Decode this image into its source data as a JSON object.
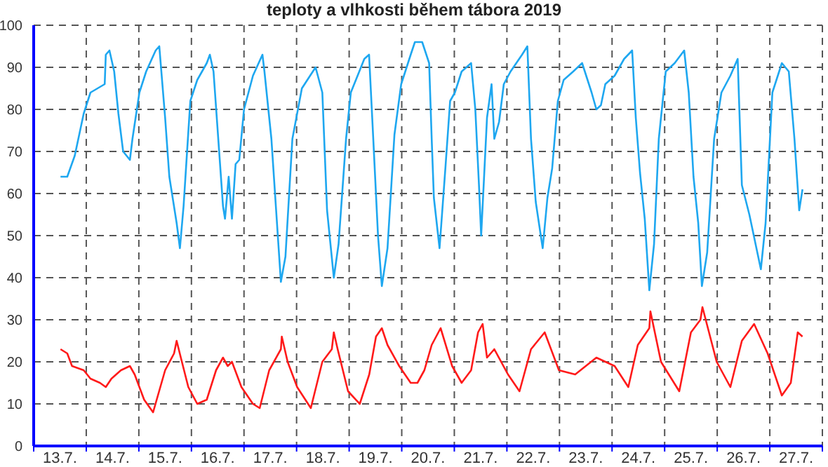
{
  "chart_data": {
    "type": "line",
    "title": "teploty a vlhkosti během tábora 2019",
    "xlim": [
      "2019-07-13",
      "2019-07-28"
    ],
    "xticks": [
      {
        "value": "2019-07-13",
        "label": null
      },
      {
        "value": "2019-07-13T12:00",
        "label": "13.7."
      },
      {
        "value": "2019-07-14",
        "label": null
      },
      {
        "value": "2019-07-14T12:00",
        "label": "14.7."
      },
      {
        "value": "2019-07-15",
        "label": null
      },
      {
        "value": "2019-07-15T12:00",
        "label": "15.7."
      },
      {
        "value": "2019-07-16",
        "label": null
      },
      {
        "value": "2019-07-16T12:00",
        "label": "16.7."
      },
      {
        "value": "2019-07-17",
        "label": null
      },
      {
        "value": "2019-07-17T12:00",
        "label": "17.7."
      },
      {
        "value": "2019-07-18",
        "label": null
      },
      {
        "value": "2019-07-18T12:00",
        "label": "18.7."
      },
      {
        "value": "2019-07-19",
        "label": null
      },
      {
        "value": "2019-07-19T12:00",
        "label": "19.7."
      },
      {
        "value": "2019-07-20",
        "label": null
      },
      {
        "value": "2019-07-20T12:00",
        "label": "20.7."
      },
      {
        "value": "2019-07-21",
        "label": null
      },
      {
        "value": "2019-07-21T12:00",
        "label": "21.7."
      },
      {
        "value": "2019-07-22",
        "label": null
      },
      {
        "value": "2019-07-22T12:00",
        "label": "22.7."
      },
      {
        "value": "2019-07-23",
        "label": null
      },
      {
        "value": "2019-07-23T12:00",
        "label": "23.7."
      },
      {
        "value": "2019-07-24",
        "label": null
      },
      {
        "value": "2019-07-24T12:00",
        "label": "24.7."
      },
      {
        "value": "2019-07-25",
        "label": null
      },
      {
        "value": "2019-07-25T12:00",
        "label": "25.7."
      },
      {
        "value": "2019-07-26",
        "label": null
      },
      {
        "value": "2019-07-26T12:00",
        "label": "26.7."
      },
      {
        "value": "2019-07-27",
        "label": null
      },
      {
        "value": "2019-07-27T12:00",
        "label": "27.7."
      },
      {
        "value": "2019-07-28",
        "label": null
      }
    ],
    "ylim": [
      0,
      100
    ],
    "yticks": [
      0,
      10,
      20,
      30,
      40,
      50,
      60,
      70,
      80,
      90,
      100
    ],
    "grid": true,
    "line_style": "solid",
    "marker": "none",
    "series": [
      {
        "color": "#1ea7f0",
        "x": [
          "2019-07-13T12:15",
          "2019-07-13T15:20",
          "2019-07-13T18:45",
          "2019-07-13T22:50",
          "2019-07-14T01:55",
          "2019-07-14T08:25",
          "2019-07-14T08:55",
          "2019-07-14T10:35",
          "2019-07-14T12:45",
          "2019-07-14T14:40",
          "2019-07-14T16:50",
          "2019-07-14T19:55",
          "2019-07-14T21:05",
          "2019-07-15T00:15",
          "2019-07-15T03:20",
          "2019-07-15T07:40",
          "2019-07-15T09:20",
          "2019-07-15T12:00",
          "2019-07-15T13:55",
          "2019-07-15T17:15",
          "2019-07-15T18:45",
          "2019-07-15T20:25",
          "2019-07-15T23:30",
          "2019-07-16T02:40",
          "2019-07-16T07:00",
          "2019-07-16T08:25",
          "2019-07-16T10:05",
          "2019-07-16T12:15",
          "2019-07-16T14:25",
          "2019-07-16T15:20",
          "2019-07-16T17:00",
          "2019-07-16T18:30",
          "2019-07-16T20:10",
          "2019-07-16T21:50",
          "2019-07-17T00:00",
          "2019-07-17T04:05",
          "2019-07-17T08:25",
          "2019-07-17T09:20",
          "2019-07-17T12:30",
          "2019-07-17T14:40",
          "2019-07-17T16:50",
          "2019-07-17T18:55",
          "2019-07-17T22:05",
          "2019-07-18T02:25",
          "2019-07-18T08:40",
          "2019-07-18T11:45",
          "2019-07-18T13:55",
          "2019-07-18T17:00",
          "2019-07-18T19:10",
          "2019-07-18T22:35",
          "2019-07-19T00:45",
          "2019-07-19T06:55",
          "2019-07-19T09:05",
          "2019-07-19T11:00",
          "2019-07-19T13:10",
          "2019-07-19T14:55",
          "2019-07-19T17:30",
          "2019-07-19T20:40",
          "2019-07-19T23:45",
          "2019-07-20T04:05",
          "2019-07-20T06:00",
          "2019-07-20T09:20",
          "2019-07-20T12:30",
          "2019-07-20T13:40",
          "2019-07-20T14:40",
          "2019-07-20T17:15",
          "2019-07-20T19:55",
          "2019-07-20T22:05",
          "2019-07-21T00:15",
          "2019-07-21T03:20",
          "2019-07-21T07:40",
          "2019-07-21T09:35",
          "2019-07-21T11:15",
          "2019-07-21T12:15",
          "2019-07-21T14:55",
          "2019-07-21T17:00",
          "2019-07-21T18:15",
          "2019-07-21T20:25",
          "2019-07-21T22:35",
          "2019-07-22T01:40",
          "2019-07-22T06:55",
          "2019-07-22T09:20",
          "2019-07-22T11:00",
          "2019-07-22T13:10",
          "2019-07-22T16:20",
          "2019-07-22T18:30",
          "2019-07-22T20:40",
          "2019-07-22T23:15",
          "2019-07-23T01:55",
          "2019-07-23T06:15",
          "2019-07-23T10:20",
          "2019-07-23T14:40",
          "2019-07-23T16:50",
          "2019-07-23T18:55",
          "2019-07-23T20:55",
          "2019-07-24T01:10",
          "2019-07-24T05:30",
          "2019-07-24T09:10",
          "2019-07-24T10:50",
          "2019-07-24T12:45",
          "2019-07-24T14:55",
          "2019-07-24T17:00",
          "2019-07-24T19:10",
          "2019-07-24T21:20",
          "2019-07-25T00:30",
          "2019-07-25T04:35",
          "2019-07-25T08:55",
          "2019-07-25T11:00",
          "2019-07-25T13:10",
          "2019-07-25T15:20",
          "2019-07-25T17:00",
          "2019-07-25T19:25",
          "2019-07-25T22:35",
          "2019-07-26T01:55",
          "2019-07-26T06:00",
          "2019-07-26T09:20",
          "2019-07-26T11:15",
          "2019-07-26T14:40",
          "2019-07-26T19:55",
          "2019-07-26T22:05",
          "2019-07-27T01:10",
          "2019-07-27T05:30",
          "2019-07-27T08:40",
          "2019-07-27T11:15",
          "2019-07-27T13:25",
          "2019-07-27T14:55"
        ],
        "values": [
          64,
          64,
          69,
          79,
          84,
          86,
          93,
          94,
          89,
          79,
          70,
          68,
          73,
          84,
          89,
          94,
          95,
          78,
          64,
          53,
          47,
          57,
          82,
          87,
          91,
          93,
          89,
          73,
          57,
          54,
          64,
          54,
          67,
          68,
          80,
          88,
          93,
          89,
          73,
          56,
          39,
          45,
          73,
          85,
          90,
          84,
          56,
          40,
          48,
          73,
          84,
          92,
          93,
          73,
          50,
          38,
          47,
          74,
          86,
          93,
          96,
          96,
          91,
          73,
          59,
          47,
          66,
          82,
          84,
          89,
          91,
          80,
          62,
          50,
          78,
          86,
          73,
          77,
          86,
          89,
          93,
          95,
          73,
          58,
          47,
          59,
          66,
          82,
          87,
          89,
          91,
          84,
          80,
          81,
          86,
          88,
          92,
          94,
          78,
          65,
          54,
          37,
          48,
          73,
          89,
          91,
          94,
          84,
          64,
          53,
          38,
          46,
          73,
          84,
          88,
          92,
          62,
          55,
          42,
          53,
          84,
          91,
          89,
          73,
          56,
          61
        ]
      },
      {
        "color": "#ff1a1a",
        "x": [
          "2019-07-13T12:15",
          "2019-07-13T15:20",
          "2019-07-13T17:30",
          "2019-07-13T22:50",
          "2019-07-14T01:55",
          "2019-07-14T06:15",
          "2019-07-14T08:55",
          "2019-07-14T11:30",
          "2019-07-14T15:50",
          "2019-07-14T19:55",
          "2019-07-14T22:05",
          "2019-07-15T02:25",
          "2019-07-15T06:30",
          "2019-07-15T12:00",
          "2019-07-15T16:05",
          "2019-07-15T17:15",
          "2019-07-15T19:10",
          "2019-07-15T22:35",
          "2019-07-16T02:40",
          "2019-07-16T07:00",
          "2019-07-16T11:15",
          "2019-07-16T14:25",
          "2019-07-16T16:35",
          "2019-07-16T18:30",
          "2019-07-16T22:50",
          "2019-07-17T04:05",
          "2019-07-17T07:10",
          "2019-07-17T11:30",
          "2019-07-17T16:50",
          "2019-07-17T17:15",
          "2019-07-17T19:55",
          "2019-07-18T00:15",
          "2019-07-18T06:30",
          "2019-07-18T11:45",
          "2019-07-18T16:05",
          "2019-07-18T17:00",
          "2019-07-18T18:45",
          "2019-07-18T23:30",
          "2019-07-19T04:50",
          "2019-07-19T09:10",
          "2019-07-19T12:15",
          "2019-07-19T14:55",
          "2019-07-19T17:30",
          "2019-07-19T22:50",
          "2019-07-20T04:05",
          "2019-07-20T07:10",
          "2019-07-20T10:20",
          "2019-07-20T13:40",
          "2019-07-20T17:45",
          "2019-07-20T23:00",
          "2019-07-21T03:20",
          "2019-07-21T07:40",
          "2019-07-21T10:50",
          "2019-07-21T12:55",
          "2019-07-21T14:55",
          "2019-07-21T18:15",
          "2019-07-22T00:30",
          "2019-07-22T05:45",
          "2019-07-22T11:00",
          "2019-07-22T17:15",
          "2019-07-22T23:45",
          "2019-07-23T07:10",
          "2019-07-23T16:50",
          "2019-07-24T01:10",
          "2019-07-24T07:25",
          "2019-07-24T11:45",
          "2019-07-24T17:00",
          "2019-07-24T17:30",
          "2019-07-24T22:20",
          "2019-07-25T06:40",
          "2019-07-25T12:00",
          "2019-07-25T16:20",
          "2019-07-25T17:15",
          "2019-07-25T23:45",
          "2019-07-26T06:00",
          "2019-07-26T11:15",
          "2019-07-26T16:50",
          "2019-07-26T23:00",
          "2019-07-27T05:30",
          "2019-07-27T09:35",
          "2019-07-27T12:45",
          "2019-07-27T14:55"
        ],
        "values": [
          23,
          22,
          19,
          18,
          16,
          15,
          14,
          16,
          18,
          19,
          17,
          11,
          8,
          18,
          22,
          25,
          21,
          14,
          10,
          11,
          18,
          21,
          19,
          20,
          14,
          10,
          9,
          18,
          23,
          26,
          20,
          14,
          9,
          20,
          23,
          27,
          23,
          13,
          10,
          17,
          26,
          28,
          24,
          19,
          15,
          15,
          18,
          24,
          28,
          19,
          15,
          18,
          27,
          29,
          21,
          23,
          17,
          13,
          23,
          27,
          18,
          17,
          21,
          19,
          14,
          24,
          28,
          32,
          20,
          13,
          27,
          30,
          33,
          20,
          14,
          25,
          29,
          22,
          12,
          15,
          27,
          26
        ]
      }
    ]
  }
}
